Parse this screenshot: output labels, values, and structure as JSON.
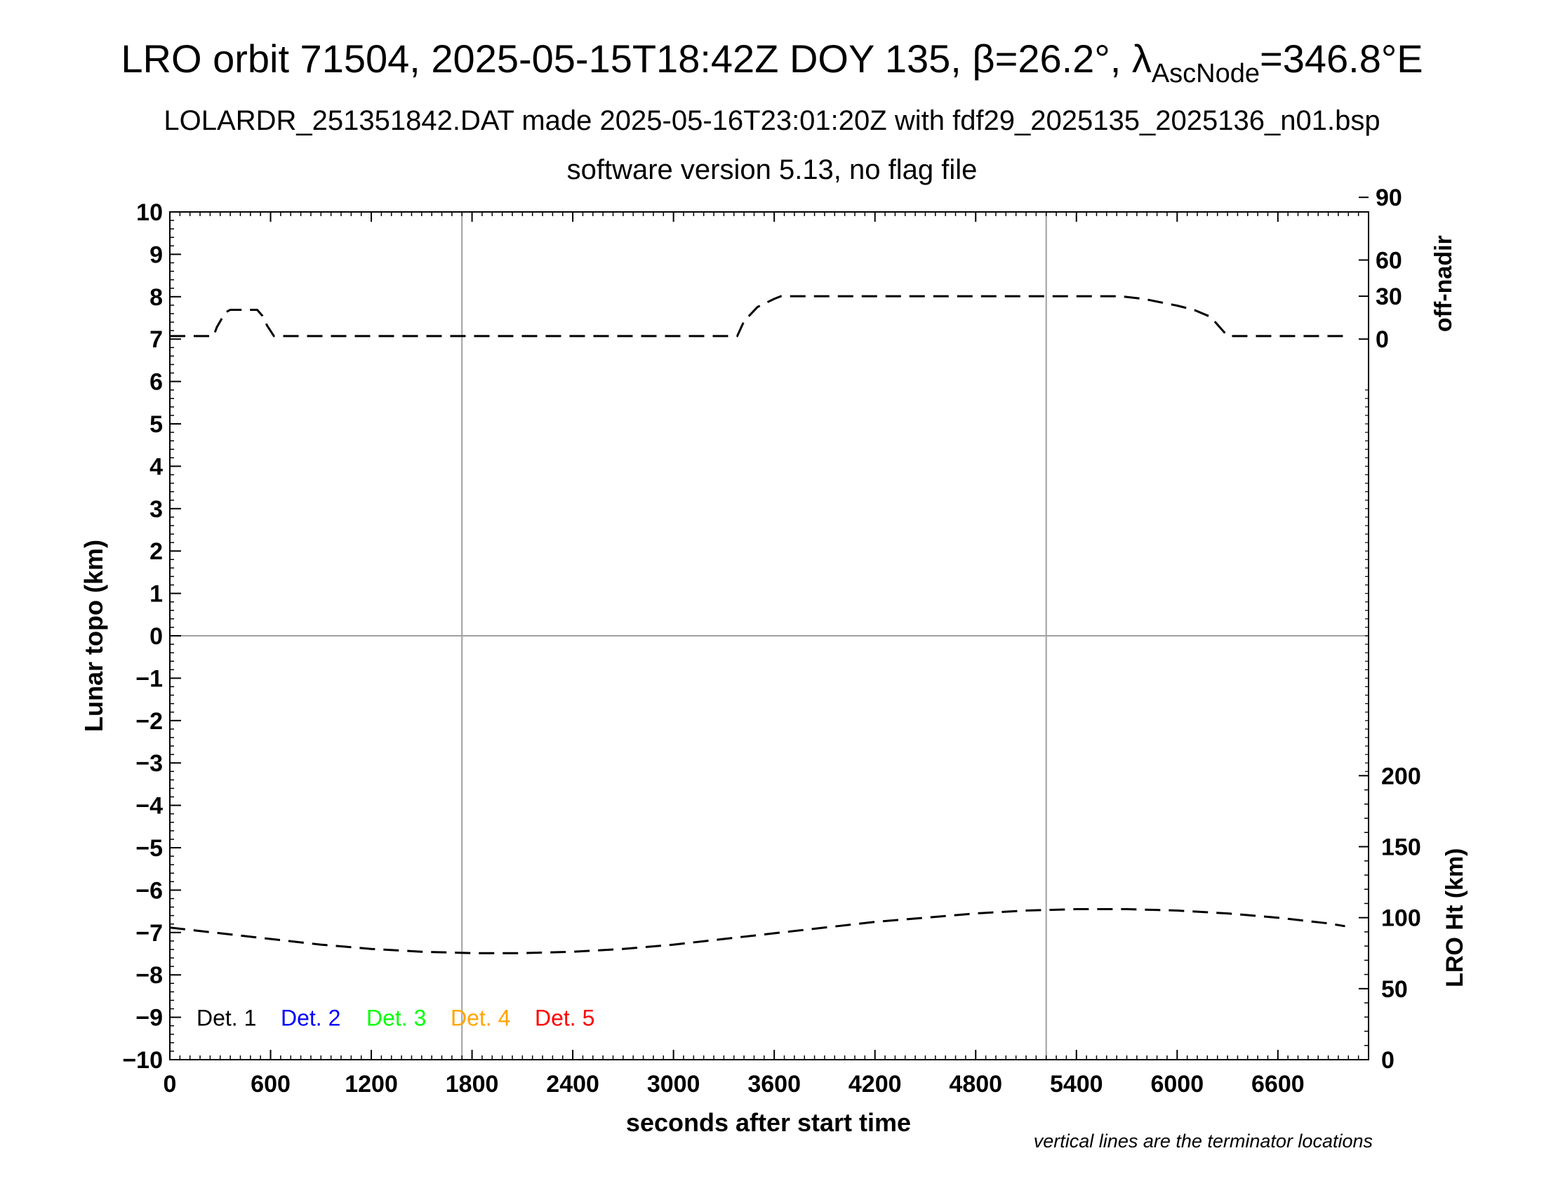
{
  "header": {
    "title_main": "LRO orbit 71504, 2025-05-15T18:42Z DOY 135, β=26.2°, λ",
    "title_sub": "AscNode",
    "title_end": "=346.8°E",
    "line2": "LOLARDR_251351842.DAT made 2025-05-16T23:01:20Z with fdf29_2025135_2025136_n01.bsp",
    "line3": "software version 5.13, no flag file"
  },
  "footnote": "vertical lines are the terminator locations",
  "colors": {
    "axis": "#000000",
    "grid": "#a0a0a0",
    "det1": "#000000",
    "det2": "#0000ff",
    "det3": "#00ff00",
    "det4": "#ffa500",
    "det5": "#ff0000"
  },
  "chart_data": {
    "type": "line",
    "xlabel": "seconds after start time",
    "ylabel": "Lunar topo (km)",
    "y2label_top": "off-nadir",
    "y2label_bottom": "LRO Ht (km)",
    "xlim": [
      0,
      7140
    ],
    "ylim": [
      -10,
      10
    ],
    "x_ticks": [
      "0",
      "600",
      "1200",
      "1800",
      "2400",
      "3000",
      "3600",
      "4200",
      "4800",
      "5400",
      "6000",
      "6600"
    ],
    "y_ticks": [
      "10",
      "9",
      "8",
      "7",
      "6",
      "5",
      "4",
      "3",
      "2",
      "1",
      "0",
      "−1",
      "−2",
      "−3",
      "−4",
      "−5",
      "−6",
      "−7",
      "−8",
      "−9",
      "−10"
    ],
    "offnadir_ticks": [
      "0",
      "30",
      "60",
      "90"
    ],
    "height_ticks": [
      "0",
      "50",
      "100",
      "150",
      "200"
    ],
    "grid_x": [
      1740,
      5220
    ],
    "grid_y": [
      0
    ],
    "legend": [
      "Det. 1",
      "Det. 2",
      "Det. 3",
      "Det. 4",
      "Det. 5"
    ],
    "series": [
      {
        "name": "off-nadir",
        "axis": "off-nadir (deg)",
        "x": [
          0,
          260,
          280,
          330,
          360,
          520,
          550,
          580,
          620,
          1000,
          2000,
          3000,
          3380,
          3420,
          3500,
          3600,
          3640,
          4200,
          5400,
          5660,
          5800,
          6000,
          6100,
          6200,
          6300,
          6400,
          6500,
          7000
        ],
        "values": [
          2,
          2,
          8,
          18,
          20,
          20,
          16,
          9,
          2,
          2,
          2,
          2,
          2,
          12,
          22,
          28,
          30,
          30,
          30,
          30,
          28,
          23,
          20,
          15,
          2,
          2,
          2,
          2
        ]
      },
      {
        "name": "LRO Ht",
        "axis": "LRO Ht (km)",
        "x": [
          0,
          300,
          600,
          900,
          1200,
          1500,
          1800,
          2100,
          2400,
          2700,
          3000,
          3300,
          3600,
          3900,
          4200,
          4500,
          4800,
          5100,
          5400,
          5700,
          6000,
          6300,
          6600,
          6900,
          7000
        ],
        "values": [
          93,
          89,
          85,
          81,
          78,
          76,
          75,
          75,
          76,
          78,
          81,
          85,
          89,
          93,
          97,
          100,
          103,
          105,
          106,
          106,
          105,
          103,
          100,
          96,
          94
        ]
      }
    ]
  }
}
